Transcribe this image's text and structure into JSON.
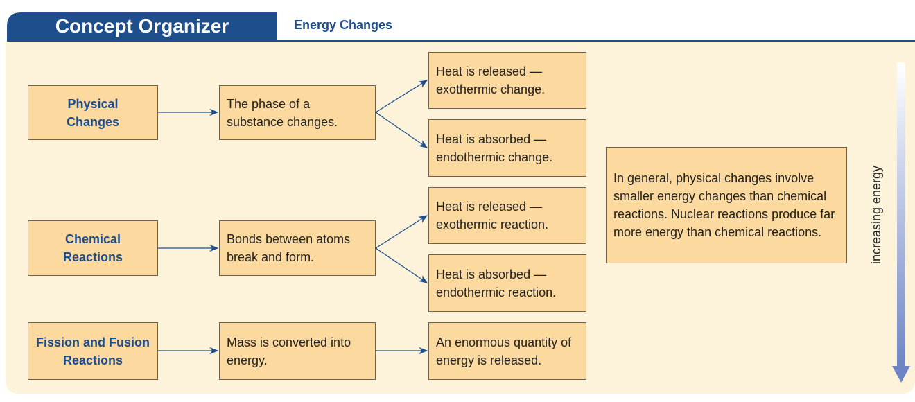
{
  "header": {
    "title": "Concept Organizer",
    "subtitle": "Energy Changes"
  },
  "rows": [
    {
      "label": "Physical Changes",
      "process": "The phase of a substance changes.",
      "outcomes": [
        "Heat is released — exothermic change.",
        "Heat is absorbed — endothermic change."
      ]
    },
    {
      "label": "Chemical Reactions",
      "process": "Bonds between atoms break and form.",
      "outcomes": [
        "Heat is released — exothermic reaction.",
        "Heat is absorbed — endothermic reaction."
      ]
    },
    {
      "label": "Fission and Fusion Reactions",
      "process": "Mass is converted into energy.",
      "outcomes": [
        "An enormous quantity of energy is released."
      ]
    }
  ],
  "summary": "In  general, physical changes involve smaller energy changes than chemical reactions. Nuclear reactions produce far more energy than chemical reactions.",
  "arrow_label": "increasing energy"
}
